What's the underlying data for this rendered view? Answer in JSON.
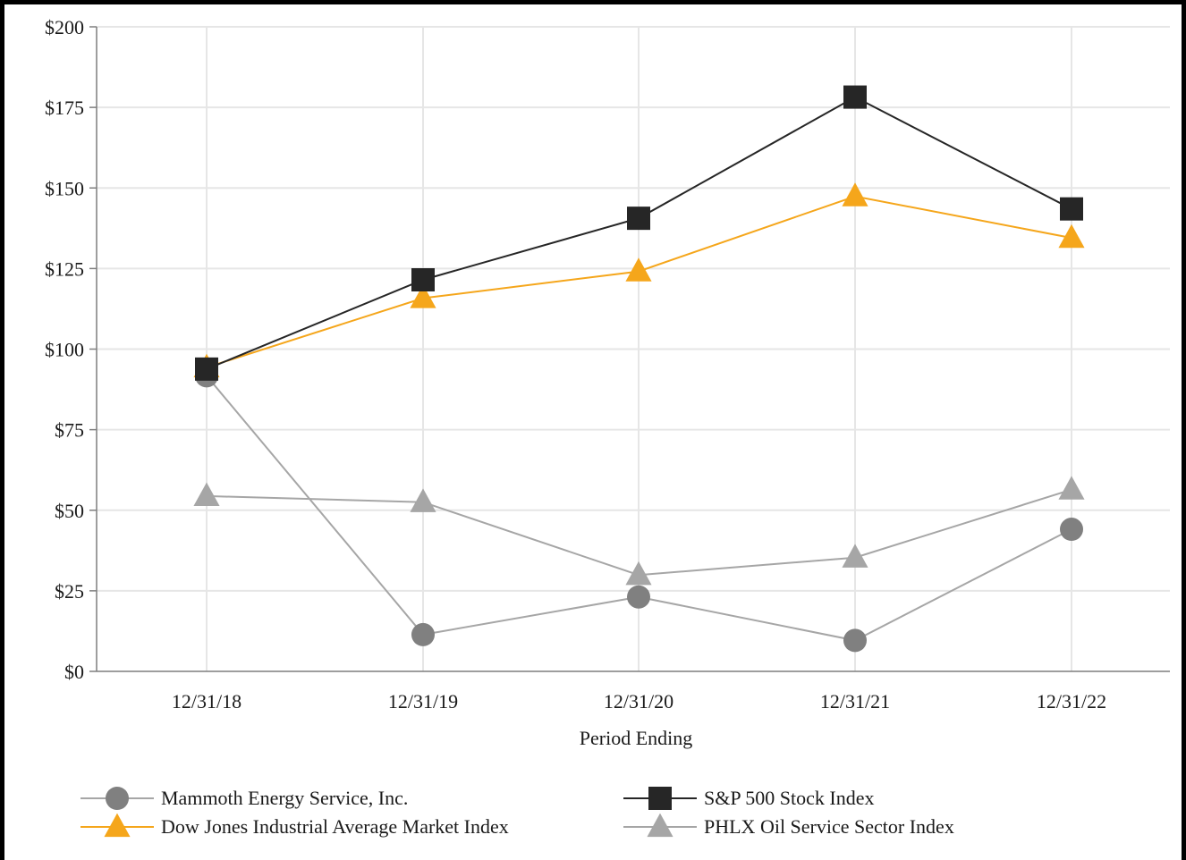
{
  "chart_data": {
    "type": "line",
    "xlabel": "Period Ending",
    "ylabel": "",
    "categories": [
      "12/31/18",
      "12/31/19",
      "12/31/20",
      "12/31/21",
      "12/31/22"
    ],
    "ylim": [
      0,
      200
    ],
    "yticks": [
      0,
      25,
      50,
      75,
      100,
      125,
      150,
      175,
      200
    ],
    "ytick_labels": [
      "$0",
      "$25",
      "$50",
      "$75",
      "$100",
      "$125",
      "$150",
      "$175",
      "$200"
    ],
    "grid": true,
    "legend_position": "bottom",
    "series": [
      {
        "name": "Mammoth Energy Service, Inc.",
        "marker": "circle",
        "line_color": "#a6a6a6",
        "marker_color": "#808080",
        "values": [
          91.7,
          11.4,
          23.1,
          9.6,
          44.1
        ]
      },
      {
        "name": "S&P 500 Stock Index",
        "marker": "square",
        "line_color": "#262626",
        "marker_color": "#262626",
        "values": [
          93.8,
          121.5,
          140.6,
          178.2,
          143.5
        ]
      },
      {
        "name": "Dow Jones Industrial Average Market Index",
        "marker": "triangle",
        "line_color": "#f5a61b",
        "marker_color": "#f5a61b",
        "values": [
          94.3,
          115.8,
          124.1,
          147.4,
          134.5
        ]
      },
      {
        "name": "PHLX Oil Service Sector Index",
        "marker": "triangle",
        "line_color": "#a6a6a6",
        "marker_color": "#a6a6a6",
        "values": [
          54.4,
          52.5,
          29.9,
          35.3,
          56.4
        ]
      }
    ]
  }
}
